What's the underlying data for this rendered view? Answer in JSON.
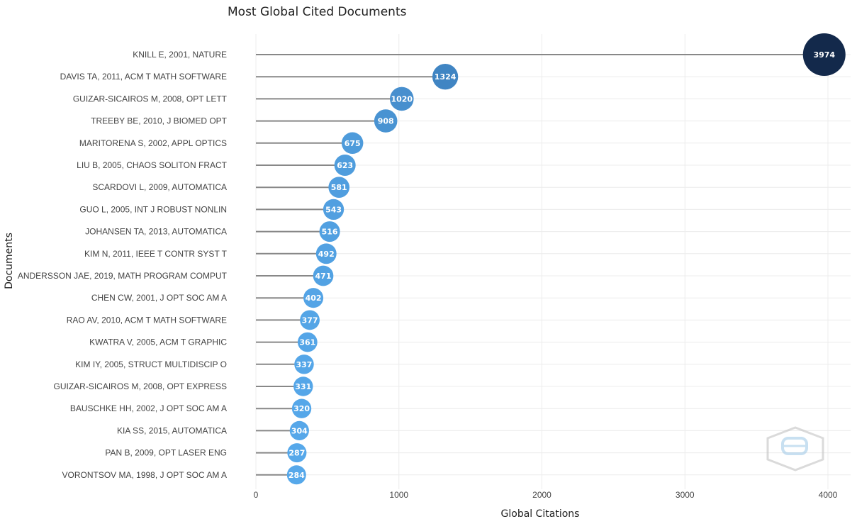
{
  "chart_data": {
    "type": "lollipop",
    "title": "Most Global Cited Documents",
    "xlabel": "Global Citations",
    "ylabel": "Documents",
    "xlim": [
      0,
      4150
    ],
    "xticks": [
      0,
      1000,
      2000,
      3000,
      4000
    ],
    "grid": true,
    "categories": [
      "KNILL E, 2001, NATURE",
      "DAVIS TA, 2011, ACM T MATH SOFTWARE",
      "GUIZAR-SICAIROS M, 2008, OPT LETT",
      "TREEBY BE, 2010, J BIOMED OPT",
      "MARITORENA S, 2002, APPL OPTICS",
      "LIU B, 2005, CHAOS SOLITON FRACT",
      "SCARDOVI L, 2009, AUTOMATICA",
      "GUO L, 2005, INT J ROBUST NONLIN",
      "JOHANSEN TA, 2013, AUTOMATICA",
      "KIM N, 2011, IEEE T CONTR SYST T",
      "ANDERSSON JAE, 2019, MATH PROGRAM COMPUT",
      "CHEN CW, 2001, J OPT SOC AM A",
      "RAO AV, 2010, ACM T MATH SOFTWARE",
      "KWATRA V, 2005, ACM T GRAPHIC",
      "KIM IY, 2005, STRUCT MULTIDISCIP O",
      "GUIZAR-SICAIROS M, 2008, OPT EXPRESS",
      "BAUSCHKE HH, 2002, J OPT SOC AM A",
      "KIA SS, 2015, AUTOMATICA",
      "PAN B, 2009, OPT LASER ENG",
      "VORONTSOV MA, 1998, J OPT SOC AM A"
    ],
    "values": [
      3974,
      1324,
      1020,
      908,
      675,
      623,
      581,
      543,
      516,
      492,
      471,
      402,
      377,
      361,
      337,
      331,
      320,
      304,
      287,
      284
    ],
    "colors": {
      "stem": "#888888",
      "grid": "#ececec",
      "low": "#56a8ea",
      "mid": "#3f83c0",
      "high": "#13294b"
    }
  },
  "watermark": {
    "icon": "bibliometrix-hexagon-logo"
  }
}
